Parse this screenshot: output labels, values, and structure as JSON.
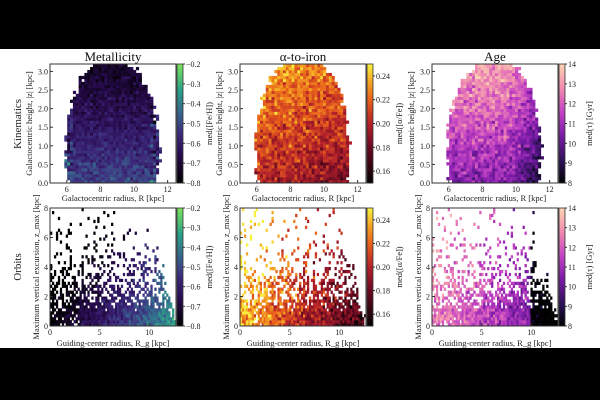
{
  "chart_data": [
    {
      "type": "heatmap",
      "title": "Metallicity",
      "row_label": "Kinematics",
      "xlabel": "Galactocentric radius, R [kpc]",
      "ylabel": "Galactocentric height, |z| [kpc]",
      "xlim": [
        5,
        12.5
      ],
      "ylim": [
        0,
        3.2
      ],
      "xticks": [
        6,
        8,
        10,
        12
      ],
      "yticks": [
        0.0,
        0.5,
        1.0,
        1.5,
        2.0,
        2.5,
        3.0
      ],
      "colorbar": {
        "label": "med([Fe/H])",
        "range": [
          -0.8,
          -0.2
        ],
        "ticks": [
          -0.8,
          -0.7,
          -0.6,
          -0.5,
          -0.4,
          -0.3,
          -0.2
        ],
        "colormap": "viridis-like"
      }
    },
    {
      "type": "heatmap",
      "title": "α-to-iron",
      "row_label": "Kinematics",
      "xlabel": "Galactocentric radius, R [kpc]",
      "ylabel": "Galactocentric height, |z| [kpc]",
      "xlim": [
        5,
        12.5
      ],
      "ylim": [
        0,
        3.2
      ],
      "xticks": [
        6,
        8,
        10,
        12
      ],
      "yticks": [
        0.0,
        0.5,
        1.0,
        1.5,
        2.0,
        2.5,
        3.0
      ],
      "colorbar": {
        "label": "med([α/Fe])",
        "range": [
          0.15,
          0.25
        ],
        "ticks": [
          0.16,
          0.18,
          0.2,
          0.22,
          0.24
        ],
        "colormap": "inferno-like"
      }
    },
    {
      "type": "heatmap",
      "title": "Age",
      "row_label": "Kinematics",
      "xlabel": "Galactocentric radius, R [kpc]",
      "ylabel": "Galactocentric height, |z| [kpc]",
      "xlim": [
        5,
        12.5
      ],
      "ylim": [
        0,
        3.2
      ],
      "xticks": [
        6,
        8,
        10,
        12
      ],
      "yticks": [
        0.0,
        0.5,
        1.0,
        1.5,
        2.0,
        2.5,
        3.0
      ],
      "colorbar": {
        "label": "med(τ) [Gyr]",
        "range": [
          8,
          14
        ],
        "ticks": [
          8,
          9,
          10,
          11,
          12,
          13,
          14
        ],
        "colormap": "magma-like"
      }
    },
    {
      "type": "heatmap",
      "title": "",
      "row_label": "Orbits",
      "xlabel": "Guiding-center radius, R_g [kpc]",
      "ylabel": "Maximum vertical excursion, z_max [kpc]",
      "xlim": [
        0,
        12.7
      ],
      "ylim": [
        0,
        8
      ],
      "xticks": [
        0,
        5,
        10
      ],
      "yticks": [
        0,
        2,
        4,
        6,
        8
      ],
      "colorbar": {
        "label": "med([Fe/H])",
        "range": [
          -0.8,
          -0.2
        ],
        "ticks": [
          -0.8,
          -0.7,
          -0.6,
          -0.5,
          -0.4,
          -0.3,
          -0.2
        ],
        "colormap": "viridis-like"
      }
    },
    {
      "type": "heatmap",
      "title": "",
      "row_label": "Orbits",
      "xlabel": "Guiding-center radius, R_g [kpc]",
      "ylabel": "Maximum vertical excursion, z_max [kpc]",
      "xlim": [
        0,
        12.7
      ],
      "ylim": [
        0,
        8
      ],
      "xticks": [
        0,
        5,
        10
      ],
      "yticks": [
        0,
        2,
        4,
        6,
        8
      ],
      "colorbar": {
        "label": "med([α/Fe])",
        "range": [
          0.15,
          0.25
        ],
        "ticks": [
          0.16,
          0.18,
          0.2,
          0.22,
          0.24
        ],
        "colormap": "inferno-like"
      }
    },
    {
      "type": "heatmap",
      "title": "",
      "row_label": "Orbits",
      "xlabel": "Guiding-center radius, R_g [kpc]",
      "ylabel": "Maximum vertical excursion, z_max [kpc]",
      "xlim": [
        0,
        12.7
      ],
      "ylim": [
        0,
        8
      ],
      "xticks": [
        0,
        5,
        10
      ],
      "yticks": [
        0,
        2,
        4,
        6,
        8
      ],
      "colorbar": {
        "label": "med(τ) [Gyr]",
        "range": [
          8,
          14
        ],
        "ticks": [
          8,
          9,
          10,
          11,
          12,
          13,
          14
        ],
        "colormap": "magma-like"
      }
    }
  ],
  "titles": [
    "Metallicity",
    "α-to-iron",
    "Age"
  ],
  "row_labels": [
    "Kinematics",
    "Orbits"
  ],
  "colors": {
    "background": "#000000",
    "figure": "#ffffff"
  }
}
